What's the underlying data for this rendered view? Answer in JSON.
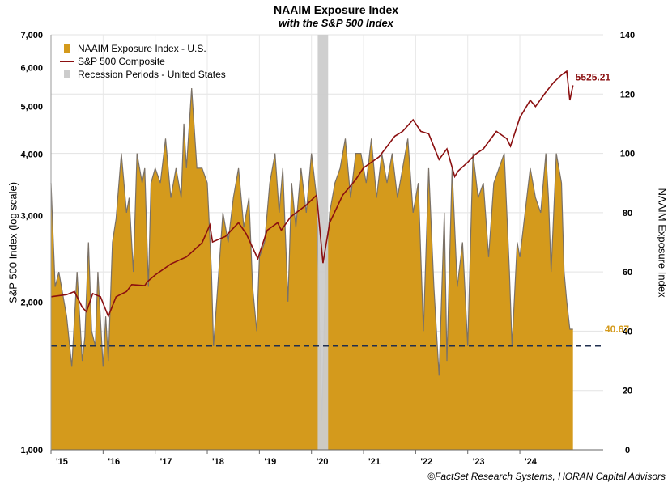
{
  "chart_data": {
    "type": "area",
    "title": "NAAIM Exposure Index",
    "subtitle": "with the S&P 500 Index",
    "ylabel_left": "S&P 500 Index (log scale)",
    "ylabel_right": "NAAIM Exposure Index",
    "left_axis": {
      "scale": "log",
      "ylim": [
        1000,
        7000
      ],
      "ticks": [
        "1,000",
        "2,000",
        "3,000",
        "4,000",
        "5,000",
        "6,000",
        "7,000"
      ],
      "tick_values": [
        1000,
        2000,
        3000,
        4000,
        5000,
        6000,
        7000
      ]
    },
    "right_axis": {
      "scale": "linear",
      "ylim": [
        0,
        140
      ],
      "ticks": [
        "0",
        "20",
        "40",
        "60",
        "80",
        "100",
        "120",
        "140"
      ],
      "tick_values": [
        0,
        20,
        40,
        60,
        80,
        100,
        120,
        140
      ]
    },
    "x_axis": {
      "range": [
        2015,
        2025.6
      ],
      "tick_labels": [
        "'15",
        "'16",
        "'17",
        "'18",
        "'19",
        "'20",
        "'21",
        "'22",
        "'23",
        "'24"
      ],
      "tick_values": [
        2015,
        2016,
        2017,
        2018,
        2019,
        2020,
        2021,
        2022,
        2023,
        2024
      ]
    },
    "grid": true,
    "legend": {
      "placement": "top-left",
      "entries": [
        "NAAIM Exposure Index - U.S.",
        "S&P 500 Composite",
        "Recession Periods - United States"
      ]
    },
    "series": [
      {
        "name": "NAAIM Exposure Index - U.S.",
        "axis": "right",
        "type": "area",
        "x": [
          2015.0,
          2015.08,
          2015.15,
          2015.3,
          2015.4,
          2015.5,
          2015.55,
          2015.6,
          2015.65,
          2015.72,
          2015.78,
          2015.85,
          2015.9,
          2016.0,
          2016.05,
          2016.1,
          2016.18,
          2016.25,
          2016.35,
          2016.45,
          2016.5,
          2016.58,
          2016.65,
          2016.75,
          2016.8,
          2016.87,
          2016.92,
          2017.0,
          2017.1,
          2017.2,
          2017.3,
          2017.4,
          2017.5,
          2017.55,
          2017.6,
          2017.7,
          2017.8,
          2017.9,
          2018.0,
          2018.08,
          2018.12,
          2018.2,
          2018.3,
          2018.4,
          2018.5,
          2018.6,
          2018.7,
          2018.8,
          2018.87,
          2018.95,
          2019.0,
          2019.1,
          2019.2,
          2019.3,
          2019.38,
          2019.45,
          2019.55,
          2019.62,
          2019.7,
          2019.8,
          2019.9,
          2020.0,
          2020.1,
          2020.15,
          2020.2,
          2020.27,
          2020.35,
          2020.45,
          2020.55,
          2020.65,
          2020.75,
          2020.85,
          2020.95,
          2021.05,
          2021.15,
          2021.25,
          2021.35,
          2021.45,
          2021.55,
          2021.65,
          2021.75,
          2021.85,
          2021.95,
          2022.05,
          2022.15,
          2022.25,
          2022.35,
          2022.45,
          2022.55,
          2022.6,
          2022.7,
          2022.8,
          2022.9,
          2023.0,
          2023.1,
          2023.2,
          2023.3,
          2023.4,
          2023.5,
          2023.6,
          2023.7,
          2023.8,
          2023.85,
          2023.95,
          2024.0,
          2024.1,
          2024.2,
          2024.3,
          2024.4,
          2024.5,
          2024.55,
          2024.6,
          2024.7,
          2024.8,
          2024.85,
          2024.9,
          2024.96,
          2025.02
        ],
        "values": [
          90,
          55,
          60,
          45,
          28,
          60,
          45,
          30,
          38,
          70,
          40,
          35,
          60,
          28,
          45,
          30,
          70,
          78,
          100,
          80,
          85,
          60,
          100,
          90,
          95,
          55,
          90,
          95,
          90,
          105,
          85,
          95,
          85,
          110,
          95,
          122,
          95,
          95,
          90,
          60,
          35,
          55,
          80,
          70,
          85,
          95,
          75,
          85,
          55,
          40,
          65,
          70,
          90,
          100,
          80,
          95,
          50,
          90,
          75,
          95,
          80,
          100,
          85,
          45,
          10,
          60,
          80,
          90,
          95,
          105,
          85,
          100,
          100,
          90,
          105,
          85,
          100,
          90,
          100,
          85,
          95,
          105,
          80,
          90,
          40,
          95,
          55,
          25,
          80,
          30,
          95,
          55,
          70,
          35,
          100,
          85,
          90,
          65,
          90,
          95,
          100,
          60,
          35,
          70,
          65,
          80,
          95,
          85,
          80,
          100,
          85,
          60,
          100,
          90,
          60,
          50,
          40.67,
          40.67
        ]
      },
      {
        "name": "S&P 500 Composite",
        "axis": "left",
        "type": "line",
        "x": [
          2015.0,
          2015.3,
          2015.45,
          2015.6,
          2015.68,
          2015.8,
          2015.95,
          2016.1,
          2016.25,
          2016.45,
          2016.55,
          2016.8,
          2016.85,
          2017.0,
          2017.3,
          2017.6,
          2017.9,
          2018.05,
          2018.1,
          2018.35,
          2018.6,
          2018.75,
          2018.97,
          2019.15,
          2019.35,
          2019.42,
          2019.6,
          2019.9,
          2020.1,
          2020.22,
          2020.35,
          2020.6,
          2020.85,
          2021.0,
          2021.3,
          2021.6,
          2021.75,
          2021.95,
          2022.1,
          2022.25,
          2022.45,
          2022.6,
          2022.75,
          2022.82,
          2023.0,
          2023.15,
          2023.3,
          2023.55,
          2023.75,
          2023.82,
          2024.0,
          2024.2,
          2024.3,
          2024.5,
          2024.65,
          2024.8,
          2024.9,
          2024.96,
          2025.02
        ],
        "values": [
          2050,
          2070,
          2100,
          1950,
          1910,
          2080,
          2050,
          1870,
          2050,
          2100,
          2170,
          2160,
          2200,
          2270,
          2390,
          2470,
          2640,
          2870,
          2650,
          2720,
          2900,
          2750,
          2450,
          2800,
          2900,
          2800,
          2980,
          3150,
          3300,
          2400,
          2900,
          3300,
          3550,
          3750,
          3950,
          4350,
          4450,
          4700,
          4450,
          4400,
          3900,
          4100,
          3600,
          3700,
          3850,
          4000,
          4100,
          4450,
          4300,
          4150,
          4750,
          5150,
          5000,
          5350,
          5600,
          5800,
          5900,
          5150,
          5525.21
        ]
      }
    ],
    "recession_periods": [
      [
        2020.12,
        2020.32
      ]
    ],
    "reference_line": {
      "axis": "right",
      "value": 35
    },
    "annotations": {
      "sp500_last": "5525.21",
      "naaim_last": "40.67"
    },
    "source": "©FactSet Research Systems, HORAN Capital Advisors"
  },
  "colors": {
    "naaim_fill": "#d49a1c",
    "naaim_line": "#7a7167",
    "sp500": "#8b0f10",
    "recession": "#cccccc",
    "reference": "#1f2f4f",
    "naaim_label": "#d49a1c"
  }
}
